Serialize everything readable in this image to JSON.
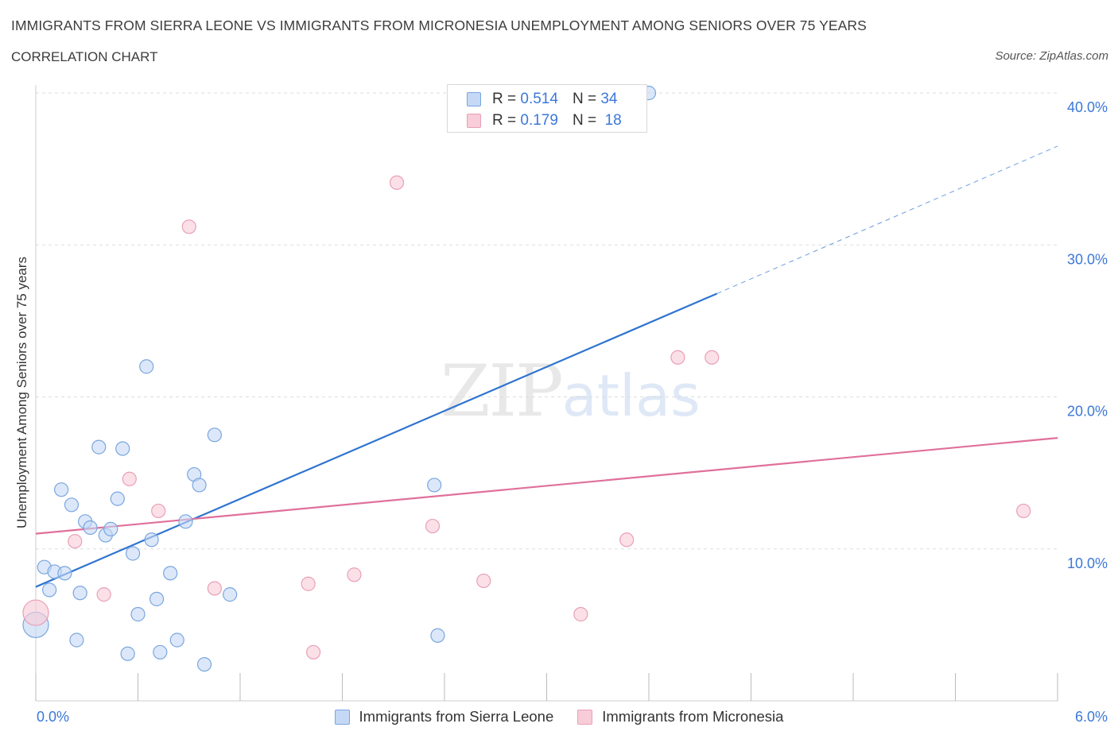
{
  "header": {
    "title": "IMMIGRANTS FROM SIERRA LEONE VS IMMIGRANTS FROM MICRONESIA UNEMPLOYMENT AMONG SENIORS OVER 75 YEARS",
    "subtitle": "CORRELATION CHART",
    "source": "Source: ZipAtlas.com"
  },
  "watermark": {
    "zip": "ZIP",
    "atlas": "atlas"
  },
  "stats_legend": {
    "sierra_leone": {
      "r_label": "R =",
      "r_value": "0.514",
      "n_label": "N =",
      "n_value": "34"
    },
    "micronesia": {
      "r_label": "R =",
      "r_value": "0.179",
      "n_label": "N =",
      "n_value": "18"
    }
  },
  "bottom_legend": {
    "sierra_leone": "Immigrants from Sierra Leone",
    "micronesia": "Immigrants from Micronesia"
  },
  "colors": {
    "blue_fill": "#c5d8f5",
    "blue_stroke": "#7aa6e0",
    "blue_line": "#2f74d0",
    "pink_fill": "#f8ccd8",
    "pink_stroke": "#e8a0b6",
    "pink_line": "#e0709a",
    "axis_text": "#3b78d8",
    "grid": "#dddddd"
  },
  "chart_data": {
    "type": "scatter",
    "title": "IMMIGRANTS FROM SIERRA LEONE VS IMMIGRANTS FROM MICRONESIA UNEMPLOYMENT AMONG SENIORS OVER 75 YEARS",
    "xlabel": "",
    "ylabel": "Unemployment Among Seniors over 75 years",
    "xlim": [
      0,
      6
    ],
    "ylim": [
      0,
      40
    ],
    "x_tick_labels": [
      "0.0%",
      "6.0%"
    ],
    "y_tick_labels": [
      "10.0%",
      "20.0%",
      "30.0%",
      "40.0%"
    ],
    "y_ticks": [
      10,
      20,
      30,
      40
    ],
    "grid": true,
    "series": [
      {
        "name": "Immigrants from Sierra Leone",
        "color_key": "blue",
        "points": [
          {
            "x": 0.0,
            "y": 5.0,
            "big": true
          },
          {
            "x": 0.05,
            "y": 8.8
          },
          {
            "x": 0.08,
            "y": 7.3
          },
          {
            "x": 0.11,
            "y": 8.5
          },
          {
            "x": 0.15,
            "y": 13.9
          },
          {
            "x": 0.17,
            "y": 8.4
          },
          {
            "x": 0.21,
            "y": 12.9
          },
          {
            "x": 0.24,
            "y": 4.0
          },
          {
            "x": 0.26,
            "y": 7.1
          },
          {
            "x": 0.29,
            "y": 11.8
          },
          {
            "x": 0.32,
            "y": 11.4
          },
          {
            "x": 0.37,
            "y": 16.7
          },
          {
            "x": 0.41,
            "y": 10.9
          },
          {
            "x": 0.44,
            "y": 11.3
          },
          {
            "x": 0.48,
            "y": 13.3
          },
          {
            "x": 0.51,
            "y": 16.6
          },
          {
            "x": 0.54,
            "y": 3.1
          },
          {
            "x": 0.57,
            "y": 9.7
          },
          {
            "x": 0.6,
            "y": 5.7
          },
          {
            "x": 0.65,
            "y": 22.0
          },
          {
            "x": 0.68,
            "y": 10.6
          },
          {
            "x": 0.71,
            "y": 6.7
          },
          {
            "x": 0.73,
            "y": 3.2
          },
          {
            "x": 0.79,
            "y": 8.4
          },
          {
            "x": 0.83,
            "y": 4.0
          },
          {
            "x": 0.88,
            "y": 11.8
          },
          {
            "x": 0.93,
            "y": 14.9
          },
          {
            "x": 0.96,
            "y": 14.2
          },
          {
            "x": 0.99,
            "y": 2.4
          },
          {
            "x": 1.05,
            "y": 17.5
          },
          {
            "x": 1.14,
            "y": 7.0
          },
          {
            "x": 2.34,
            "y": 14.2
          },
          {
            "x": 2.36,
            "y": 4.3
          },
          {
            "x": 3.6,
            "y": 40.0
          }
        ],
        "trend": {
          "x0": 0.0,
          "y0": 7.5,
          "x1": 4.0,
          "y1": 26.8,
          "dash_to_x": 6.0,
          "dash_to_y": 36.5
        }
      },
      {
        "name": "Immigrants from Micronesia",
        "color_key": "pink",
        "points": [
          {
            "x": 0.0,
            "y": 5.8,
            "big": true
          },
          {
            "x": 0.23,
            "y": 10.5
          },
          {
            "x": 0.4,
            "y": 7.0
          },
          {
            "x": 0.55,
            "y": 14.6
          },
          {
            "x": 0.72,
            "y": 12.5
          },
          {
            "x": 0.9,
            "y": 31.2
          },
          {
            "x": 1.05,
            "y": 7.4
          },
          {
            "x": 1.6,
            "y": 7.7
          },
          {
            "x": 1.63,
            "y": 3.2
          },
          {
            "x": 1.87,
            "y": 8.3
          },
          {
            "x": 2.12,
            "y": 34.1
          },
          {
            "x": 2.33,
            "y": 11.5
          },
          {
            "x": 2.63,
            "y": 7.9
          },
          {
            "x": 3.2,
            "y": 5.7
          },
          {
            "x": 3.47,
            "y": 10.6
          },
          {
            "x": 3.77,
            "y": 22.6
          },
          {
            "x": 3.97,
            "y": 22.6
          },
          {
            "x": 5.8,
            "y": 12.5
          }
        ],
        "trend": {
          "x0": 0.0,
          "y0": 11.0,
          "x1": 6.0,
          "y1": 17.3
        }
      }
    ]
  }
}
